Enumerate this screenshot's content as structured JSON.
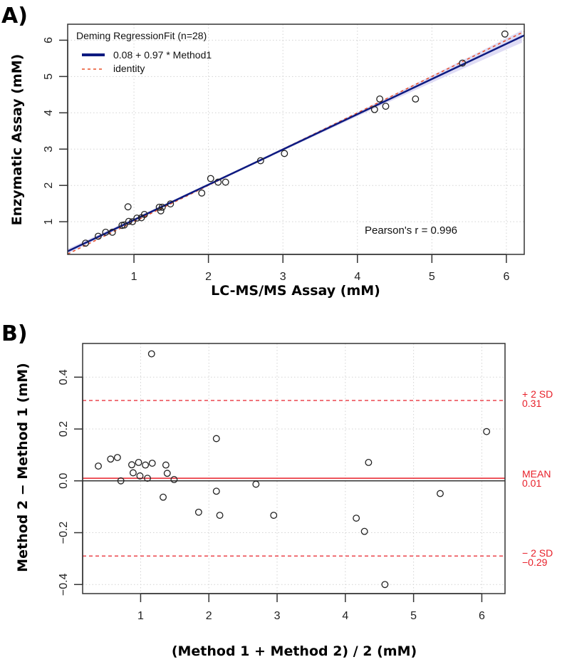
{
  "chart_data": [
    {
      "type": "scatter",
      "panel_label": "A)",
      "xlabel": "LC-MS/MS Assay (mM)",
      "ylabel": "Enzymatic Assay (mM)",
      "xlim": [
        0.11,
        6.24
      ],
      "ylim": [
        0.1,
        6.44
      ],
      "xticks": [
        1,
        2,
        3,
        4,
        5,
        6
      ],
      "yticks": [
        1,
        2,
        3,
        4,
        5,
        6
      ],
      "grid": true,
      "legend": {
        "title": "Deming RegressionFit (n=28)",
        "placement": "top-left",
        "entries": [
          {
            "label": "0.08 + 0.97 * Method1",
            "style": "solid",
            "color": "#0d1a80"
          },
          {
            "label": "identity",
            "style": "dashed",
            "color": "#e8502a"
          }
        ]
      },
      "regression": {
        "intercept": 0.08,
        "slope": 0.97
      },
      "band_color": "#c9c4ee",
      "annotation": "Pearson's r = 0.996",
      "points": [
        [
          0.35,
          0.41
        ],
        [
          0.52,
          0.6
        ],
        [
          0.62,
          0.71
        ],
        [
          0.71,
          0.71
        ],
        [
          0.84,
          0.9
        ],
        [
          0.87,
          0.91
        ],
        [
          0.93,
          1.01
        ],
        [
          0.98,
          1.0
        ],
        [
          1.04,
          1.1
        ],
        [
          1.1,
          1.11
        ],
        [
          1.14,
          1.2
        ],
        [
          0.92,
          1.41
        ],
        [
          1.34,
          1.4
        ],
        [
          1.38,
          1.4
        ],
        [
          1.36,
          1.3
        ],
        [
          1.49,
          1.49
        ],
        [
          1.91,
          1.79
        ],
        [
          2.03,
          2.19
        ],
        [
          2.13,
          2.09
        ],
        [
          2.23,
          2.09
        ],
        [
          2.7,
          2.68
        ],
        [
          3.02,
          2.88
        ],
        [
          5.98,
          6.17
        ],
        [
          4.3,
          4.38
        ],
        [
          5.41,
          5.37
        ],
        [
          4.23,
          4.09
        ],
        [
          4.38,
          4.18
        ],
        [
          4.78,
          4.38
        ]
      ]
    },
    {
      "type": "scatter",
      "panel_label": "B)",
      "xlabel": "(Method 1 + Method 2) / 2 (mM)",
      "ylabel": "Method 2 − Method 1 (mM)",
      "xlim": [
        0.15,
        6.34
      ],
      "ylim": [
        -0.435,
        0.53
      ],
      "xticks": [
        1,
        2,
        3,
        4,
        5,
        6
      ],
      "yticks": [
        -0.4,
        -0.2,
        0.0,
        0.2,
        0.4
      ],
      "ytick_labels": [
        "−0.4",
        "−0.2",
        "0.0",
        "0.2",
        "0.4"
      ],
      "grid": true,
      "mean": 0.01,
      "upper_limit": 0.31,
      "lower_limit": -0.29,
      "line_color": "#e8202a",
      "line_labels": {
        "upper_name": "+ 2 SD",
        "upper_value": "0.31",
        "mean_name": "MEAN",
        "mean_value": "0.01",
        "lower_name": "− 2 SD",
        "lower_value": "−0.29"
      },
      "points": [
        [
          0.38,
          0.057
        ],
        [
          0.56,
          0.084
        ],
        [
          0.66,
          0.09
        ],
        [
          0.71,
          0.0
        ],
        [
          0.87,
          0.062
        ],
        [
          0.89,
          0.031
        ],
        [
          0.97,
          0.071
        ],
        [
          0.99,
          0.019
        ],
        [
          1.07,
          0.061
        ],
        [
          1.1,
          0.01
        ],
        [
          1.17,
          0.068
        ],
        [
          1.16,
          0.49
        ],
        [
          1.37,
          0.061
        ],
        [
          1.39,
          0.029
        ],
        [
          1.33,
          -0.063
        ],
        [
          1.49,
          0.005
        ],
        [
          1.85,
          -0.121
        ],
        [
          2.11,
          0.163
        ],
        [
          2.11,
          -0.04
        ],
        [
          2.16,
          -0.133
        ],
        [
          2.69,
          -0.013
        ],
        [
          2.95,
          -0.133
        ],
        [
          6.07,
          0.19
        ],
        [
          4.34,
          0.071
        ],
        [
          5.39,
          -0.049
        ],
        [
          4.16,
          -0.144
        ],
        [
          4.28,
          -0.195
        ],
        [
          4.58,
          -0.4
        ]
      ]
    }
  ]
}
